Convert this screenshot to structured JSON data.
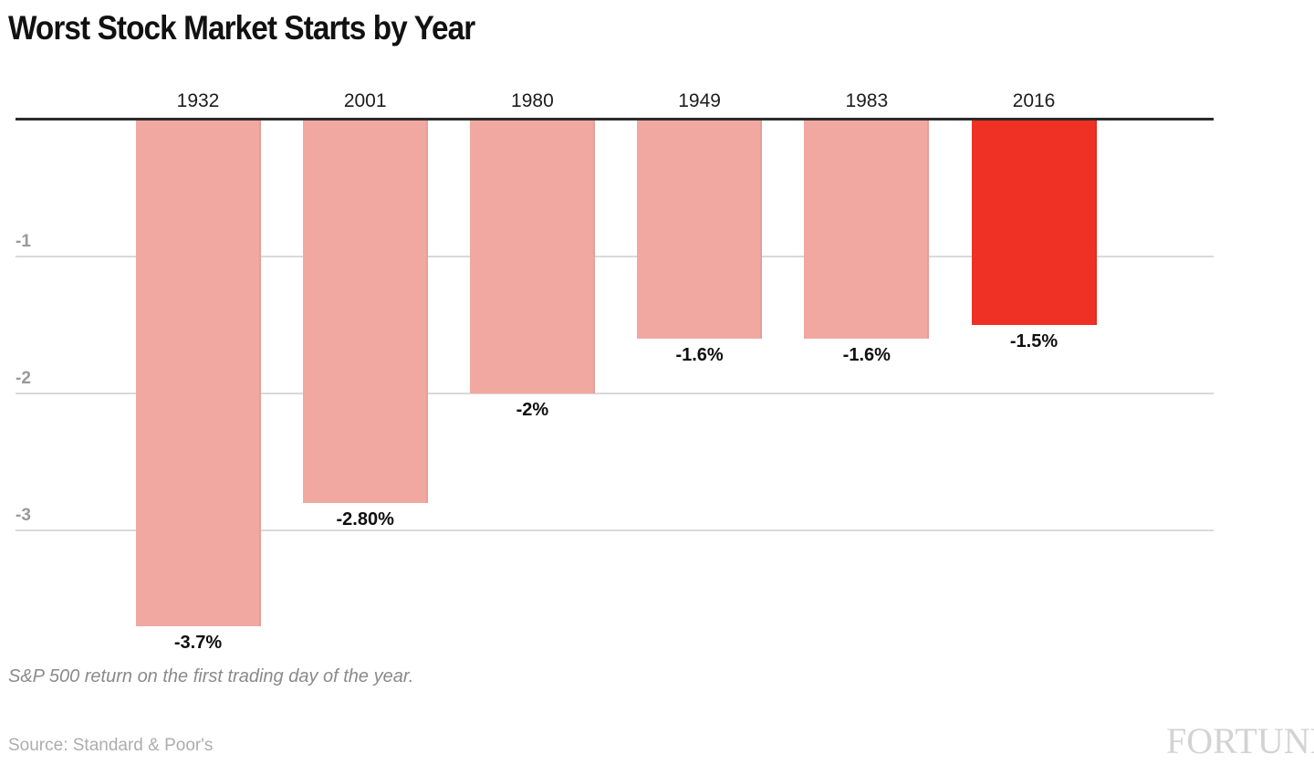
{
  "page": {
    "title": "Worst Stock Market Starts by Year",
    "subtitle": "S&P 500 return on the first trading day of the year.",
    "source": "Source: Standard & Poor's",
    "brand": "FORTUNE"
  },
  "colors": {
    "background": "#FFFFFF",
    "bar_default": "#F0A8A1",
    "bar_highlight": "#EE3124",
    "axis_line": "#2B2B2B",
    "gridline": "#D9D9D9",
    "tick_label": "#999999",
    "category_label": "#1D1D1D",
    "value_label": "#0F0F0F",
    "title_text": "#111111",
    "subtitle_text": "#8A8A8A",
    "source_text": "#ADADAD",
    "brand_text": "#D3D3D3"
  },
  "chart_data": {
    "type": "bar",
    "orientation": "vertical-negative",
    "title": "Worst Stock Market Starts by Year",
    "subtitle": "S&P 500 return on the first trading day of the year.",
    "source": "Source: Standard & Poor's",
    "categories": [
      "1932",
      "2001",
      "1980",
      "1949",
      "1983",
      "2016"
    ],
    "values": [
      -3.7,
      -2.8,
      -2,
      -1.6,
      -1.6,
      -1.5
    ],
    "value_labels": [
      "-3.7%",
      "-2.80%",
      "-2%",
      "-1.6%",
      "-1.6%",
      "-1.5%"
    ],
    "highlight_index": 5,
    "highlight_category": "2016",
    "xlabel": "",
    "ylabel": "",
    "y_ticks": [
      -1,
      -2,
      -3
    ],
    "y_tick_labels": [
      "-1",
      "-2",
      "-3"
    ],
    "ylim": [
      -4,
      0
    ],
    "grid": true,
    "legend": false,
    "category_label_position": "above-axis",
    "value_label_position": "below-bar"
  }
}
